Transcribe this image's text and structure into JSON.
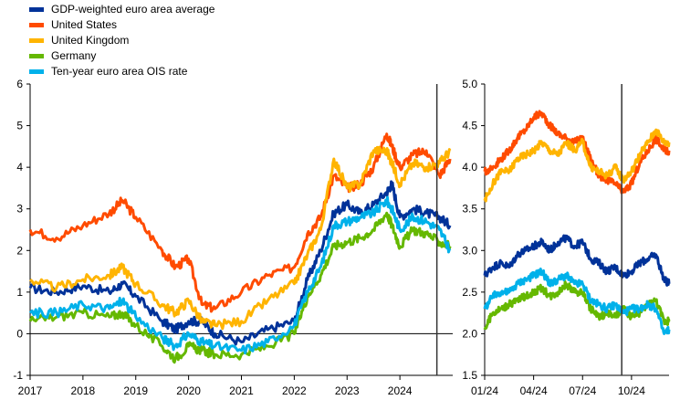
{
  "legend": [
    {
      "label": "GDP-weighted euro area average",
      "color": "#003299"
    },
    {
      "label": "United States",
      "color": "#ff4b00"
    },
    {
      "label": "United Kingdom",
      "color": "#ffb400"
    },
    {
      "label": "Germany",
      "color": "#65b800"
    },
    {
      "label": "Ten-year euro area OIS rate",
      "color": "#00b1ea"
    }
  ],
  "chart_data": [
    {
      "type": "line",
      "panel": "left",
      "xlabel": "",
      "ylabel": "",
      "x_ticks": [
        "2017",
        "2018",
        "2019",
        "2020",
        "2021",
        "2022",
        "2023",
        "2024"
      ],
      "xlim": [
        2017.0,
        2025.0
      ],
      "y_ticks": [
        "-1",
        "0",
        "1",
        "2",
        "3",
        "4",
        "5",
        "6"
      ],
      "ylim": [
        -1,
        6
      ],
      "zero_line": 0,
      "vertical_marker": 2024.7,
      "grid": false,
      "x": [
        2017.0,
        2017.5,
        2018.0,
        2018.5,
        2018.75,
        2019.0,
        2019.5,
        2019.75,
        2020.0,
        2020.25,
        2020.5,
        2021.0,
        2021.5,
        2022.0,
        2022.25,
        2022.5,
        2022.75,
        2023.0,
        2023.25,
        2023.5,
        2023.75,
        2023.85,
        2024.0,
        2024.25,
        2024.5,
        2024.75,
        2024.95
      ],
      "series": [
        {
          "name": "GDP-weighted euro area average",
          "color": "#003299",
          "values": [
            1.1,
            1.0,
            1.15,
            1.0,
            1.2,
            0.9,
            0.3,
            0.1,
            0.3,
            0.3,
            0.0,
            -0.2,
            0.1,
            0.3,
            1.3,
            2.0,
            2.9,
            3.1,
            2.9,
            3.1,
            3.4,
            3.6,
            2.8,
            3.0,
            2.9,
            2.8,
            2.6
          ]
        },
        {
          "name": "United States",
          "color": "#ff4b00",
          "values": [
            2.5,
            2.3,
            2.6,
            2.9,
            3.2,
            2.8,
            2.0,
            1.6,
            1.8,
            0.7,
            0.6,
            1.0,
            1.4,
            1.6,
            2.4,
            2.8,
            3.8,
            3.5,
            3.6,
            4.0,
            4.8,
            4.5,
            4.0,
            4.3,
            4.4,
            3.8,
            4.2
          ]
        },
        {
          "name": "United Kingdom",
          "color": "#ffb400",
          "values": [
            1.3,
            1.1,
            1.3,
            1.4,
            1.6,
            1.2,
            0.7,
            0.5,
            0.8,
            0.3,
            0.2,
            0.3,
            0.8,
            1.2,
            1.9,
            2.5,
            4.2,
            3.5,
            3.6,
            4.4,
            4.4,
            4.1,
            3.6,
            4.1,
            4.0,
            4.1,
            4.4
          ]
        },
        {
          "name": "Germany",
          "color": "#65b800",
          "values": [
            0.3,
            0.4,
            0.5,
            0.4,
            0.5,
            0.2,
            -0.3,
            -0.6,
            -0.3,
            -0.4,
            -0.5,
            -0.5,
            -0.3,
            0.0,
            0.9,
            1.4,
            2.1,
            2.2,
            2.3,
            2.5,
            2.9,
            2.6,
            2.1,
            2.5,
            2.4,
            2.2,
            2.1
          ]
        },
        {
          "name": "Ten-year euro area OIS rate",
          "color": "#00b1ea",
          "values": [
            0.5,
            0.5,
            0.7,
            0.6,
            0.8,
            0.4,
            -0.1,
            -0.3,
            0.0,
            -0.2,
            -0.3,
            -0.4,
            -0.2,
            0.2,
            1.0,
            1.6,
            2.6,
            2.7,
            2.8,
            2.9,
            3.2,
            3.0,
            2.5,
            2.8,
            2.7,
            2.5,
            2.0
          ]
        }
      ]
    },
    {
      "type": "line",
      "panel": "right",
      "xlabel": "",
      "ylabel": "",
      "x_ticks": [
        "01/24",
        "04/24",
        "07/24",
        "10/24"
      ],
      "xlim": [
        0,
        11.3
      ],
      "y_ticks": [
        "1.5",
        "2.0",
        "2.5",
        "3.0",
        "3.5",
        "4.0",
        "4.5",
        "5.0"
      ],
      "ylim": [
        1.5,
        5.0
      ],
      "vertical_marker": 8.4,
      "grid": false,
      "x": [
        0,
        0.5,
        1,
        1.5,
        2,
        2.5,
        3,
        3.5,
        4,
        4.5,
        5,
        5.5,
        6,
        6.5,
        7,
        7.5,
        8,
        8.5,
        9,
        9.5,
        10,
        10.5,
        11,
        11.3
      ],
      "series": [
        {
          "name": "GDP-weighted euro area average",
          "color": "#003299",
          "values": [
            2.7,
            2.8,
            2.85,
            2.8,
            2.95,
            3.0,
            3.05,
            3.1,
            3.0,
            3.1,
            3.15,
            3.05,
            3.1,
            2.9,
            2.85,
            2.75,
            2.8,
            2.7,
            2.75,
            2.85,
            2.9,
            2.95,
            2.65,
            2.6
          ]
        },
        {
          "name": "United States",
          "color": "#ff4b00",
          "values": [
            3.95,
            4.0,
            4.1,
            4.2,
            4.35,
            4.45,
            4.6,
            4.65,
            4.5,
            4.4,
            4.35,
            4.3,
            4.35,
            4.1,
            3.9,
            3.85,
            3.8,
            3.7,
            3.8,
            4.05,
            4.2,
            4.35,
            4.2,
            4.2
          ]
        },
        {
          "name": "United Kingdom",
          "color": "#ffb400",
          "values": [
            3.6,
            3.8,
            3.95,
            3.95,
            4.1,
            4.15,
            4.2,
            4.3,
            4.2,
            4.15,
            4.3,
            4.2,
            4.3,
            4.0,
            3.95,
            3.9,
            4.0,
            3.85,
            3.95,
            4.15,
            4.3,
            4.45,
            4.3,
            4.3
          ]
        },
        {
          "name": "Germany",
          "color": "#65b800",
          "values": [
            2.05,
            2.25,
            2.3,
            2.35,
            2.4,
            2.45,
            2.5,
            2.55,
            2.45,
            2.5,
            2.6,
            2.5,
            2.5,
            2.3,
            2.2,
            2.25,
            2.2,
            2.3,
            2.2,
            2.25,
            2.35,
            2.4,
            2.15,
            2.15
          ]
        },
        {
          "name": "Ten-year euro area OIS rate",
          "color": "#00b1ea",
          "values": [
            2.3,
            2.45,
            2.5,
            2.5,
            2.6,
            2.65,
            2.7,
            2.75,
            2.6,
            2.65,
            2.7,
            2.6,
            2.6,
            2.4,
            2.35,
            2.3,
            2.35,
            2.25,
            2.3,
            2.3,
            2.35,
            2.3,
            2.0,
            2.05
          ]
        }
      ]
    }
  ]
}
